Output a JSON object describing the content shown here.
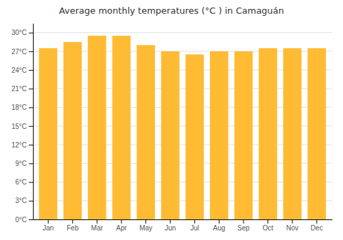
{
  "chart_data": {
    "type": "bar",
    "title": "Average monthly temperatures (°C ) in Camaguán",
    "categories": [
      "Jan",
      "Feb",
      "Mar",
      "Apr",
      "May",
      "Jun",
      "Jul",
      "Aug",
      "Sep",
      "Oct",
      "Nov",
      "Dec"
    ],
    "values": [
      27.5,
      28.5,
      29.5,
      29.5,
      28.0,
      27.0,
      26.5,
      27.0,
      27.0,
      27.5,
      27.5,
      27.5
    ],
    "color": "#FFBB33",
    "ylim": [
      0,
      31.5
    ],
    "yticks": [
      {
        "value": 0,
        "label": "0°C"
      },
      {
        "value": 3,
        "label": "3°C"
      },
      {
        "value": 6,
        "label": "6°C"
      },
      {
        "value": 9,
        "label": "9°C"
      },
      {
        "value": 12,
        "label": "12°C"
      },
      {
        "value": 15,
        "label": "15°C"
      },
      {
        "value": 18,
        "label": "18°C"
      },
      {
        "value": 21,
        "label": "21°C"
      },
      {
        "value": 24,
        "label": "24°C"
      },
      {
        "value": 27,
        "label": "27°C"
      },
      {
        "value": 30,
        "label": "30°C"
      }
    ],
    "grid": true
  }
}
